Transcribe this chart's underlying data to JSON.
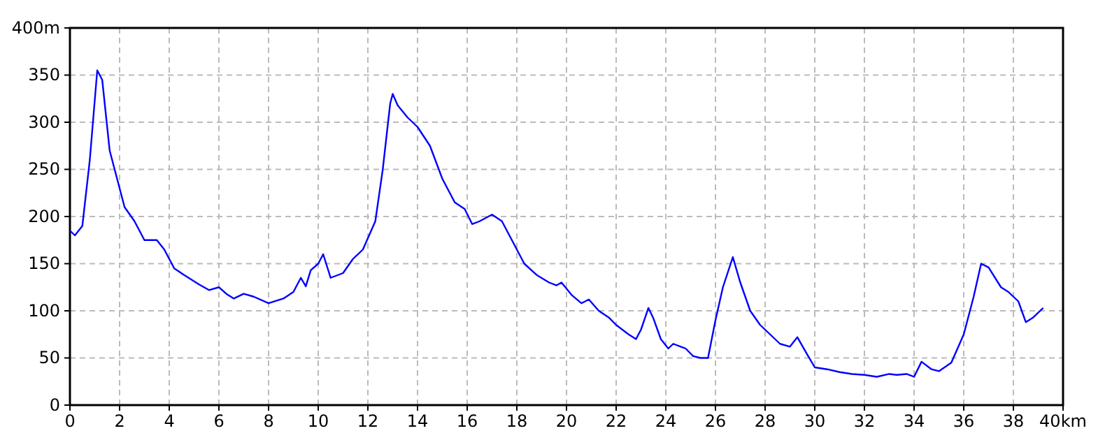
{
  "chart_data": {
    "type": "line",
    "grid": true,
    "line_style": "solid",
    "marker": "none",
    "xlim": [
      0,
      40
    ],
    "xticks": [
      0,
      2,
      4,
      6,
      8,
      10,
      12,
      14,
      16,
      18,
      20,
      22,
      24,
      26,
      28,
      30,
      32,
      34,
      36,
      38,
      {
        "value": 40,
        "label": "40km"
      }
    ],
    "ylim": [
      0,
      400
    ],
    "yticks": [
      0,
      50,
      100,
      150,
      200,
      250,
      300,
      350,
      {
        "value": 400,
        "label": "400m"
      }
    ],
    "series": [
      {
        "color": "#0000ff",
        "x": [
          0,
          0.2,
          0.5,
          0.8,
          1.1,
          1.3,
          1.6,
          1.9,
          2.2,
          2.6,
          3.0,
          3.5,
          3.8,
          4.2,
          4.6,
          5.2,
          5.6,
          6.0,
          6.3,
          6.6,
          7.0,
          7.4,
          8.0,
          8.6,
          9.0,
          9.3,
          9.5,
          9.7,
          10.0,
          10.2,
          10.5,
          11.0,
          11.4,
          11.8,
          12.3,
          12.6,
          12.9,
          13.0,
          13.2,
          13.6,
          14.0,
          14.5,
          15.0,
          15.5,
          15.9,
          16.2,
          16.5,
          17.0,
          17.4,
          17.8,
          18.3,
          18.8,
          19.3,
          19.6,
          19.8,
          20.2,
          20.6,
          20.9,
          21.3,
          21.7,
          22.0,
          22.5,
          22.8,
          23.0,
          23.3,
          23.5,
          23.8,
          24.1,
          24.3,
          24.6,
          24.8,
          25.1,
          25.4,
          25.7,
          26.0,
          26.3,
          26.7,
          27.0,
          27.4,
          27.8,
          28.2,
          28.6,
          29.0,
          29.3,
          29.6,
          30.0,
          30.5,
          31.0,
          31.5,
          32.0,
          32.5,
          33.0,
          33.3,
          33.7,
          34.0,
          34.3,
          34.7,
          35.0,
          35.5,
          36.0,
          36.4,
          36.7,
          37.0,
          37.5,
          37.8,
          38.2,
          38.5,
          38.8,
          39.2
        ],
        "values": [
          185,
          180,
          190,
          260,
          355,
          345,
          270,
          240,
          210,
          195,
          175,
          175,
          165,
          145,
          138,
          128,
          122,
          125,
          118,
          113,
          118,
          115,
          108,
          113,
          120,
          135,
          126,
          143,
          150,
          160,
          135,
          140,
          155,
          165,
          195,
          250,
          320,
          330,
          318,
          305,
          295,
          275,
          240,
          215,
          208,
          192,
          195,
          202,
          195,
          175,
          150,
          138,
          130,
          127,
          130,
          117,
          108,
          112,
          100,
          93,
          85,
          75,
          70,
          80,
          103,
          92,
          70,
          60,
          65,
          62,
          60,
          52,
          50,
          50,
          90,
          125,
          157,
          130,
          100,
          85,
          75,
          65,
          62,
          72,
          58,
          40,
          38,
          35,
          33,
          32,
          30,
          33,
          32,
          33,
          30,
          46,
          38,
          36,
          45,
          75,
          115,
          150,
          146,
          125,
          120,
          110,
          88,
          93,
          103
        ]
      }
    ]
  }
}
